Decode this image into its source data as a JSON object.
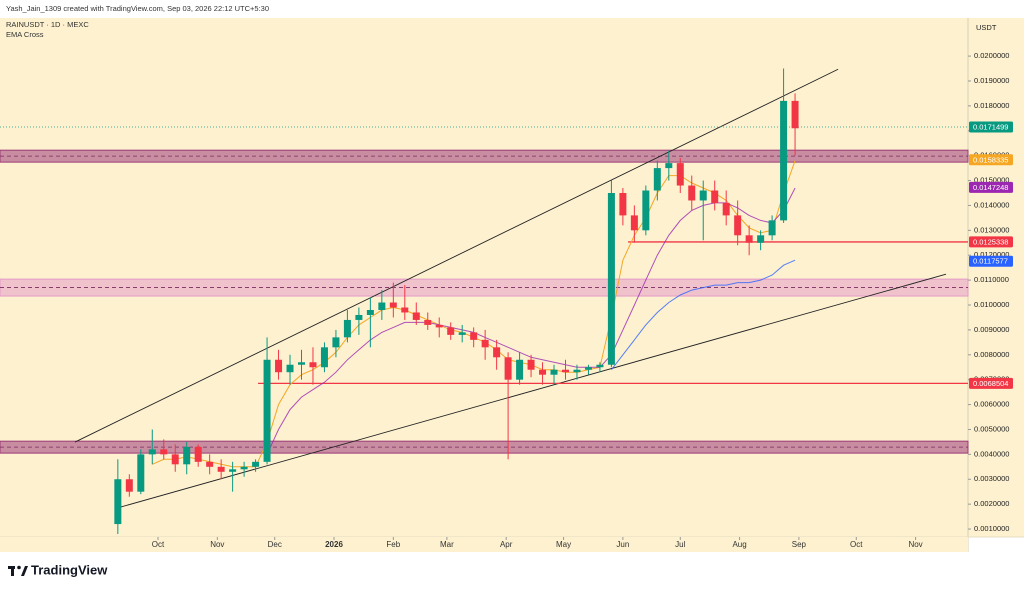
{
  "chart_data": {
    "type": "candlestick",
    "credit": "Yash_Jain_1309 created with TradingView.com, Sep 03, 2026 22:12 UTC+5:30",
    "title": "RAINUSDT · 1D · MEXC",
    "subtitle": "EMA Cross",
    "y_axis_unit": "USDT",
    "brand": "TradingView",
    "up_color": "#089981",
    "down_color": "#f23645",
    "x": [
      -21,
      -15,
      -9,
      -3,
      3,
      9,
      15,
      21,
      27,
      33,
      39,
      45,
      51,
      57,
      63,
      69,
      75,
      81,
      87,
      93,
      99,
      105,
      111,
      117,
      123,
      129,
      135,
      141,
      147,
      153,
      159,
      165,
      171,
      177,
      183,
      189,
      195,
      201,
      207,
      213,
      219,
      225,
      231,
      237,
      243,
      249,
      255,
      261,
      267,
      273,
      279,
      285,
      291,
      297,
      303,
      309,
      315,
      321,
      327,
      333
    ],
    "open": [
      0.0012,
      0.003,
      0.0025,
      0.004,
      0.0042,
      0.004,
      0.0036,
      0.0043,
      0.0037,
      0.0035,
      0.0033,
      0.0034,
      0.0035,
      0.0037,
      0.0078,
      0.0073,
      0.0076,
      0.0077,
      0.0075,
      0.0083,
      0.0087,
      0.0094,
      0.0096,
      0.0098,
      0.0101,
      0.0099,
      0.0097,
      0.0094,
      0.0092,
      0.0091,
      0.0088,
      0.0089,
      0.0086,
      0.0083,
      0.0079,
      0.007,
      0.0078,
      0.0074,
      0.0072,
      0.0074,
      0.0073,
      0.0074,
      0.0075,
      0.0076,
      0.0145,
      0.0136,
      0.013,
      0.0146,
      0.0155,
      0.0157,
      0.0148,
      0.0142,
      0.0146,
      0.0141,
      0.0136,
      0.0128,
      0.0125,
      0.0128,
      0.0134,
      0.0182
    ],
    "high": [
      0.0038,
      0.0032,
      0.0042,
      0.005,
      0.0046,
      0.0044,
      0.0045,
      0.0044,
      0.004,
      0.0038,
      0.0037,
      0.0037,
      0.0038,
      0.0087,
      0.0082,
      0.008,
      0.0082,
      0.0083,
      0.0085,
      0.009,
      0.0098,
      0.0099,
      0.0103,
      0.0106,
      0.0109,
      0.0108,
      0.0101,
      0.0097,
      0.0095,
      0.0093,
      0.0092,
      0.0091,
      0.009,
      0.0086,
      0.0081,
      0.0081,
      0.008,
      0.0077,
      0.0076,
      0.0078,
      0.0076,
      0.0076,
      0.0077,
      0.015,
      0.0147,
      0.014,
      0.0148,
      0.0158,
      0.0162,
      0.0159,
      0.0152,
      0.015,
      0.015,
      0.0146,
      0.0142,
      0.0132,
      0.013,
      0.0136,
      0.0195,
      0.0185
    ],
    "low": [
      0.0008,
      0.0023,
      0.0024,
      0.0036,
      0.0038,
      0.0033,
      0.0032,
      0.0035,
      0.0032,
      0.003,
      0.0025,
      0.0031,
      0.0033,
      0.0036,
      0.007,
      0.0068,
      0.007,
      0.0068,
      0.0073,
      0.0079,
      0.0085,
      0.0088,
      0.0083,
      0.0094,
      0.0095,
      0.0094,
      0.0092,
      0.009,
      0.0087,
      0.0086,
      0.0085,
      0.0083,
      0.0078,
      0.0074,
      0.0038,
      0.0068,
      0.0071,
      0.0068,
      0.0068,
      0.007,
      0.007,
      0.0072,
      0.0073,
      0.0075,
      0.0132,
      0.0125,
      0.0128,
      0.0142,
      0.015,
      0.0145,
      0.0138,
      0.0126,
      0.0138,
      0.0132,
      0.0124,
      0.012,
      0.0122,
      0.0126,
      0.0133,
      0.016
    ],
    "close": [
      0.003,
      0.0025,
      0.004,
      0.0042,
      0.004,
      0.0036,
      0.0043,
      0.0037,
      0.0035,
      0.0033,
      0.0034,
      0.0035,
      0.0037,
      0.0078,
      0.0073,
      0.0076,
      0.0077,
      0.0075,
      0.0083,
      0.0087,
      0.0094,
      0.0096,
      0.0098,
      0.0101,
      0.0099,
      0.0097,
      0.0094,
      0.0092,
      0.0091,
      0.0088,
      0.0089,
      0.0086,
      0.0083,
      0.0079,
      0.007,
      0.0078,
      0.0074,
      0.0072,
      0.0074,
      0.0073,
      0.0074,
      0.0075,
      0.0076,
      0.0145,
      0.0136,
      0.013,
      0.0146,
      0.0155,
      0.0157,
      0.0148,
      0.0142,
      0.0146,
      0.0141,
      0.0136,
      0.0128,
      0.0125,
      0.0128,
      0.0134,
      0.0182,
      0.0171
    ],
    "series": [
      {
        "color": "#f5a623",
        "values": [
          null,
          null,
          null,
          0.0036,
          0.0038,
          0.0038,
          0.0039,
          0.0038,
          0.0037,
          0.0036,
          0.0035,
          0.0035,
          0.0035,
          0.0045,
          0.006,
          0.0068,
          0.0072,
          0.0074,
          0.0077,
          0.0081,
          0.0087,
          0.0092,
          0.0095,
          0.0098,
          0.0099,
          0.0098,
          0.0096,
          0.0094,
          0.0092,
          0.009,
          0.0089,
          0.0087,
          0.0085,
          0.0082,
          0.0078,
          0.0077,
          0.0076,
          0.0074,
          0.0074,
          0.0073,
          0.0073,
          0.0074,
          0.0075,
          0.0095,
          0.0118,
          0.0128,
          0.0135,
          0.0145,
          0.0152,
          0.0152,
          0.0149,
          0.0147,
          0.0145,
          0.0142,
          0.0136,
          0.0131,
          0.0129,
          0.013,
          0.0145,
          0.0158
        ]
      },
      {
        "color": "#9c27b0",
        "values": [
          null,
          null,
          null,
          null,
          null,
          null,
          null,
          null,
          null,
          null,
          null,
          null,
          null,
          0.004,
          0.005,
          0.0058,
          0.0063,
          0.0066,
          0.0069,
          0.0073,
          0.0078,
          0.0082,
          0.0086,
          0.0089,
          0.0091,
          0.0093,
          0.0093,
          0.0093,
          0.0092,
          0.0091,
          0.009,
          0.0089,
          0.0087,
          0.0085,
          0.0083,
          0.0081,
          0.0079,
          0.0078,
          0.0077,
          0.0076,
          0.0075,
          0.0075,
          0.0075,
          0.008,
          0.009,
          0.01,
          0.011,
          0.012,
          0.0128,
          0.0134,
          0.0138,
          0.014,
          0.0141,
          0.0141,
          0.0139,
          0.0136,
          0.0134,
          0.0133,
          0.0138,
          0.0147
        ]
      },
      {
        "color": "#2962ff",
        "values": [
          null,
          null,
          null,
          null,
          null,
          null,
          null,
          null,
          null,
          null,
          null,
          null,
          null,
          null,
          null,
          null,
          null,
          null,
          null,
          null,
          null,
          null,
          null,
          null,
          null,
          null,
          null,
          null,
          null,
          null,
          null,
          null,
          null,
          null,
          null,
          null,
          null,
          null,
          null,
          null,
          null,
          null,
          null,
          0.0074,
          0.008,
          0.0086,
          0.0092,
          0.0097,
          0.0101,
          0.0104,
          0.0106,
          0.0107,
          0.0108,
          0.0108,
          0.0109,
          0.0109,
          0.011,
          0.0112,
          0.0116,
          0.0118
        ]
      }
    ],
    "xlim": [
      -82.6,
      423.4
    ],
    "xticks": [
      {
        "value": 0,
        "label": "Oct"
      },
      {
        "value": 31,
        "label": "Nov"
      },
      {
        "value": 61,
        "label": "Dec"
      },
      {
        "value": 92,
        "label": "2026"
      },
      {
        "value": 123,
        "label": "Feb"
      },
      {
        "value": 151,
        "label": "Mar"
      },
      {
        "value": 182,
        "label": "Apr"
      },
      {
        "value": 212,
        "label": "May"
      },
      {
        "value": 243,
        "label": "Jun"
      },
      {
        "value": 273,
        "label": "Jul"
      },
      {
        "value": 304,
        "label": "Aug"
      },
      {
        "value": 335,
        "label": "Sep"
      },
      {
        "value": 365,
        "label": "Oct"
      },
      {
        "value": 396,
        "label": "Nov"
      }
    ],
    "ylim": [
      0.00068,
      0.02153
    ],
    "yticks": [
      {
        "value": 0.001,
        "label": "0.0010000"
      },
      {
        "value": 0.002,
        "label": "0.0020000"
      },
      {
        "value": 0.003,
        "label": "0.0030000"
      },
      {
        "value": 0.004,
        "label": "0.0040000"
      },
      {
        "value": 0.005,
        "label": "0.0050000"
      },
      {
        "value": 0.006,
        "label": "0.0060000"
      },
      {
        "value": 0.007,
        "label": "0.0070000"
      },
      {
        "value": 0.008,
        "label": "0.0080000"
      },
      {
        "value": 0.009,
        "label": "0.0090000"
      },
      {
        "value": 0.01,
        "label": "0.0100000"
      },
      {
        "value": 0.011,
        "label": "0.0110000"
      },
      {
        "value": 0.012,
        "label": "0.0120000"
      },
      {
        "value": 0.013,
        "label": "0.0130000"
      },
      {
        "value": 0.014,
        "label": "0.0140000"
      },
      {
        "value": 0.015,
        "label": "0.0150000"
      },
      {
        "value": 0.016,
        "label": "0.0160000"
      },
      {
        "value": 0.017,
        "label": "0.0170000"
      },
      {
        "value": 0.018,
        "label": "0.0180000"
      },
      {
        "value": 0.019,
        "label": "0.0190000"
      },
      {
        "value": 0.02,
        "label": "0.0200000"
      }
    ],
    "zones": [
      {
        "low": 0.01574,
        "high": 0.01622,
        "color": "#9c3a78"
      },
      {
        "low": 0.01036,
        "high": 0.01104,
        "color": "#e39ac8"
      },
      {
        "low": 0.00405,
        "high": 0.00453,
        "color": "#9c3a78"
      }
    ],
    "hlines": [
      {
        "value": 0.0125338,
        "x_start": 245.7,
        "color": "#f23645"
      },
      {
        "value": 0.0068504,
        "x_start": 52.3,
        "color": "#f23645"
      }
    ],
    "trendlines": [
      {
        "x": [
          -43.4,
          355.5
        ],
        "y": [
          0.004494,
          0.01947
        ]
      },
      {
        "x": [
          -21.4,
          411.9
        ],
        "y": [
          0.001843,
          0.01124
        ]
      }
    ],
    "price_labels": [
      {
        "value": 0.0171499,
        "color": "#089981",
        "line": "dotted"
      },
      {
        "value": 0.0158335,
        "color": "#f5a623"
      },
      {
        "value": 0.0147248,
        "color": "#9c27b0"
      },
      {
        "value": 0.0125338,
        "color": "#f23645"
      },
      {
        "value": 0.0117577,
        "color": "#2962ff"
      },
      {
        "value": 0.0068504,
        "color": "#f23645"
      }
    ]
  }
}
